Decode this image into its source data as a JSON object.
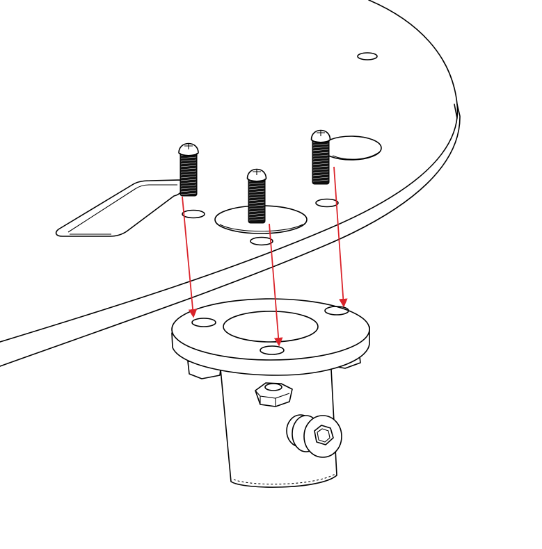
{
  "diagram": {
    "assembly_step": "flange-to-plate",
    "screw_count": 3,
    "arrow_color": "#d9232a",
    "line_color": "#000000",
    "background": "#ffffff",
    "screws": [
      {
        "id": "screw-left"
      },
      {
        "id": "screw-center"
      },
      {
        "id": "screw-right"
      }
    ],
    "parts": [
      "base-plate",
      "button-head-screw",
      "shaft-flange-hub",
      "hex-nut",
      "set-screw"
    ]
  }
}
